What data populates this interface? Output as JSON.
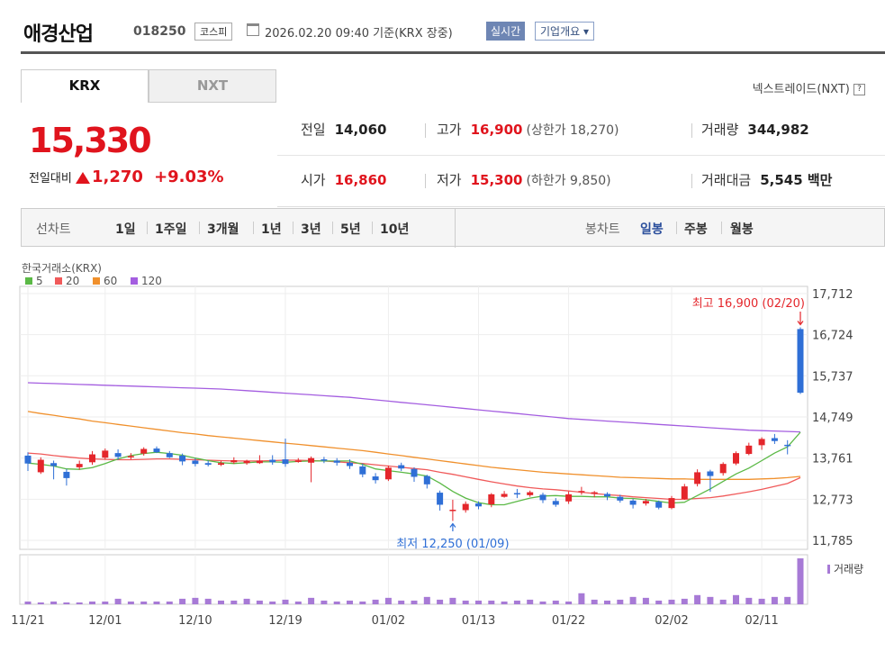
{
  "header": {
    "name": "애경산업",
    "code": "018250",
    "market": "코스피",
    "datetime": "2026.02.20 09:40  기준(KRX 장중)",
    "realtime": "실시간",
    "company_info": "기업개요"
  },
  "tabs": {
    "krx": "KRX",
    "nxt": "NXT"
  },
  "nxt_link": "넥스트레이드(NXT)",
  "quote": {
    "price": "15,330",
    "change_label": "전일대비",
    "change_amount": "1,270",
    "change_pct": "+9.03%",
    "prev_label": "전일",
    "prev": "14,060",
    "high_label": "고가",
    "high": "16,900",
    "upper_limit": "(상한가 18,270)",
    "volume_label": "거래량",
    "volume": "344,982",
    "open_label": "시가",
    "open": "16,860",
    "low_label": "저가",
    "low": "15,300",
    "lower_limit": "(하한가 9,850)",
    "amount_label": "거래대금",
    "amount": "5,545 백만"
  },
  "controls": {
    "line_label": "선차트",
    "ranges": [
      "1일",
      "1주일",
      "3개월",
      "1년",
      "3년",
      "5년",
      "10년"
    ],
    "candle_label": "봉차트",
    "candle_opts": [
      "일봉",
      "주봉",
      "월봉"
    ],
    "candle_selected": "일봉"
  },
  "chart_data": {
    "type": "candlestick",
    "source_label": "한국거래소(KRX)",
    "legend": [
      {
        "name": "5",
        "color": "#5bb946"
      },
      {
        "name": "20",
        "color": "#f05a5a"
      },
      {
        "name": "60",
        "color": "#f0902c"
      },
      {
        "name": "120",
        "color": "#a45ee0"
      }
    ],
    "y_ticks": [
      17712,
      16724,
      15737,
      14749,
      13761,
      12773,
      11785
    ],
    "y_tick_labels": [
      "17,712",
      "16,724",
      "15,737",
      "14,749",
      "13,761",
      "12,773",
      "11,785"
    ],
    "ylim": [
      11785,
      17712
    ],
    "x_tick_labels": [
      "11/21",
      "12/01",
      "12/10",
      "12/19",
      "01/02",
      "01/13",
      "01/22",
      "02/02",
      "02/11"
    ],
    "x_tick_index": [
      0,
      6,
      13,
      20,
      28,
      35,
      42,
      50,
      57
    ],
    "high_annotation": "최고 16,900 (02/20)",
    "low_annotation": "최저 12,250 (01/09)",
    "volume_label": "거래량",
    "candles": [
      [
        13820,
        13630,
        13900,
        13450
      ],
      [
        13420,
        13720,
        13780,
        13380
      ],
      [
        13640,
        13570,
        13700,
        13250
      ],
      [
        13430,
        13280,
        13500,
        13100
      ],
      [
        13540,
        13620,
        13700,
        13480
      ],
      [
        13660,
        13850,
        13930,
        13600
      ],
      [
        13770,
        13940,
        13990,
        13730
      ],
      [
        13880,
        13790,
        13970,
        13720
      ],
      [
        13790,
        13810,
        13880,
        13730
      ],
      [
        13870,
        13980,
        14020,
        13820
      ],
      [
        13990,
        13900,
        14040,
        13880
      ],
      [
        13880,
        13780,
        13930,
        13760
      ],
      [
        13820,
        13680,
        13870,
        13590
      ],
      [
        13700,
        13620,
        13760,
        13560
      ],
      [
        13640,
        13600,
        13700,
        13560
      ],
      [
        13600,
        13640,
        13690,
        13570
      ],
      [
        13660,
        13710,
        13780,
        13620
      ],
      [
        13640,
        13690,
        13720,
        13600
      ],
      [
        13640,
        13700,
        13830,
        13620
      ],
      [
        13720,
        13660,
        13830,
        13600
      ],
      [
        13730,
        13620,
        14230,
        13550
      ],
      [
        13700,
        13700,
        13760,
        13650
      ],
      [
        13650,
        13760,
        13800,
        13180
      ],
      [
        13730,
        13700,
        13790,
        13640
      ],
      [
        13700,
        13650,
        13760,
        13580
      ],
      [
        13650,
        13570,
        13730,
        13500
      ],
      [
        13560,
        13370,
        13630,
        13300
      ],
      [
        13320,
        13230,
        13400,
        13150
      ],
      [
        13250,
        13530,
        13580,
        13210
      ],
      [
        13590,
        13510,
        13650,
        13450
      ],
      [
        13500,
        13310,
        13540,
        13190
      ],
      [
        13330,
        13130,
        13360,
        13030
      ],
      [
        12930,
        12640,
        12980,
        12500
      ],
      [
        12490,
        12520,
        12760,
        12250
      ],
      [
        12510,
        12660,
        12720,
        12450
      ],
      [
        12670,
        12600,
        12720,
        12530
      ],
      [
        12650,
        12890,
        12920,
        12580
      ],
      [
        12830,
        12900,
        12970,
        12810
      ],
      [
        12920,
        12890,
        13020,
        12800
      ],
      [
        12870,
        12940,
        12980,
        12830
      ],
      [
        12880,
        12750,
        12930,
        12680
      ],
      [
        12730,
        12640,
        12800,
        12590
      ],
      [
        12720,
        12890,
        12960,
        12660
      ],
      [
        12960,
        12970,
        13070,
        12880
      ],
      [
        12900,
        12940,
        12970,
        12820
      ],
      [
        12900,
        12840,
        12940,
        12750
      ],
      [
        12830,
        12740,
        12880,
        12690
      ],
      [
        12740,
        12640,
        12780,
        12550
      ],
      [
        12670,
        12730,
        12780,
        12620
      ],
      [
        12710,
        12570,
        12740,
        12530
      ],
      [
        12560,
        12800,
        12850,
        12530
      ],
      [
        12780,
        13080,
        13140,
        12760
      ],
      [
        13140,
        13420,
        13490,
        13080
      ],
      [
        13440,
        13330,
        13480,
        12950
      ],
      [
        13400,
        13620,
        13660,
        13340
      ],
      [
        13630,
        13880,
        13920,
        13590
      ],
      [
        13860,
        14060,
        14130,
        13830
      ],
      [
        14070,
        14220,
        14260,
        13960
      ],
      [
        14240,
        14170,
        14340,
        14100
      ],
      [
        14080,
        14060,
        14190,
        13850
      ],
      [
        16860,
        15330,
        16900,
        15300
      ]
    ],
    "volumes": [
      6,
      4,
      6,
      4,
      4,
      6,
      6,
      12,
      6,
      6,
      6,
      6,
      12,
      14,
      12,
      8,
      8,
      12,
      8,
      6,
      10,
      6,
      14,
      8,
      6,
      8,
      6,
      10,
      14,
      8,
      8,
      16,
      10,
      14,
      8,
      8,
      8,
      6,
      8,
      10,
      6,
      8,
      6,
      24,
      10,
      8,
      10,
      16,
      14,
      8,
      10,
      12,
      20,
      16,
      10,
      20,
      14,
      12,
      16,
      16,
      100
    ],
    "ma5": [
      13640,
      13610,
      13570,
      13500,
      13490,
      13530,
      13630,
      13740,
      13820,
      13870,
      13900,
      13870,
      13830,
      13760,
      13700,
      13650,
      13630,
      13650,
      13670,
      13670,
      13660,
      13680,
      13690,
      13690,
      13690,
      13690,
      13610,
      13500,
      13460,
      13420,
      13380,
      13330,
      13160,
      12960,
      12800,
      12690,
      12640,
      12640,
      12720,
      12800,
      12850,
      12860,
      12840,
      12840,
      12830,
      12830,
      12800,
      12790,
      12760,
      12720,
      12680,
      12700,
      12860,
      13020,
      13200,
      13380,
      13520,
      13700,
      13880,
      14030,
      14380
    ],
    "ma20": [
      13880,
      13860,
      13820,
      13790,
      13760,
      13740,
      13730,
      13720,
      13720,
      13730,
      13740,
      13740,
      13730,
      13720,
      13710,
      13700,
      13690,
      13690,
      13690,
      13700,
      13710,
      13710,
      13700,
      13690,
      13670,
      13650,
      13630,
      13600,
      13570,
      13540,
      13510,
      13480,
      13420,
      13370,
      13310,
      13250,
      13190,
      13140,
      13090,
      13050,
      13020,
      13000,
      12970,
      12940,
      12910,
      12880,
      12860,
      12830,
      12810,
      12790,
      12770,
      12770,
      12790,
      12810,
      12850,
      12900,
      12950,
      13010,
      13080,
      13150,
      13290
    ],
    "ma60": [
      14880,
      14830,
      14790,
      14740,
      14700,
      14650,
      14610,
      14570,
      14530,
      14490,
      14450,
      14410,
      14370,
      14340,
      14300,
      14270,
      14240,
      14210,
      14180,
      14150,
      14120,
      14090,
      14060,
      14030,
      14000,
      13970,
      13940,
      13900,
      13860,
      13820,
      13780,
      13740,
      13700,
      13660,
      13620,
      13580,
      13540,
      13510,
      13480,
      13450,
      13420,
      13400,
      13380,
      13360,
      13340,
      13320,
      13300,
      13290,
      13280,
      13270,
      13260,
      13260,
      13250,
      13250,
      13250,
      13250,
      13250,
      13260,
      13270,
      13290,
      13320
    ],
    "ma120": [
      15570,
      15560,
      15550,
      15540,
      15530,
      15520,
      15510,
      15500,
      15490,
      15480,
      15470,
      15460,
      15450,
      15440,
      15430,
      15420,
      15400,
      15380,
      15360,
      15340,
      15320,
      15300,
      15280,
      15260,
      15240,
      15220,
      15190,
      15160,
      15130,
      15100,
      15070,
      15040,
      15010,
      14980,
      14950,
      14920,
      14890,
      14860,
      14830,
      14800,
      14770,
      14740,
      14710,
      14690,
      14670,
      14650,
      14630,
      14610,
      14590,
      14570,
      14550,
      14530,
      14510,
      14490,
      14470,
      14450,
      14430,
      14420,
      14410,
      14400,
      14390
    ]
  }
}
